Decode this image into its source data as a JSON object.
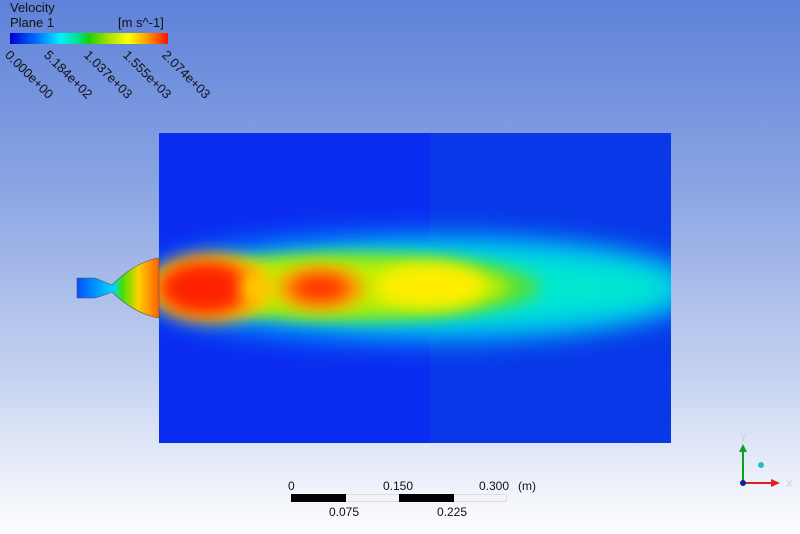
{
  "legend": {
    "title": "Velocity",
    "subtitle": "Plane 1",
    "unit": "[m s^-1]",
    "ticks": [
      "0.000e+00",
      "5.184e+02",
      "1.037e+03",
      "1.555e+03",
      "2.074e+03"
    ],
    "colormap": [
      "#0000d0",
      "#00f0ff",
      "#20d000",
      "#ffff00",
      "#ff1000"
    ]
  },
  "scale_bar": {
    "top_labels": [
      "0",
      "0.150",
      "0.300"
    ],
    "bottom_labels": [
      "0.075",
      "0.225"
    ],
    "unit": "(m)"
  },
  "axis_triad": {
    "x_label": "X",
    "y_label": "Y",
    "z_label": "Z",
    "x_color": "#e02020",
    "y_color": "#10a020",
    "z_color": "#20c0c0"
  }
}
